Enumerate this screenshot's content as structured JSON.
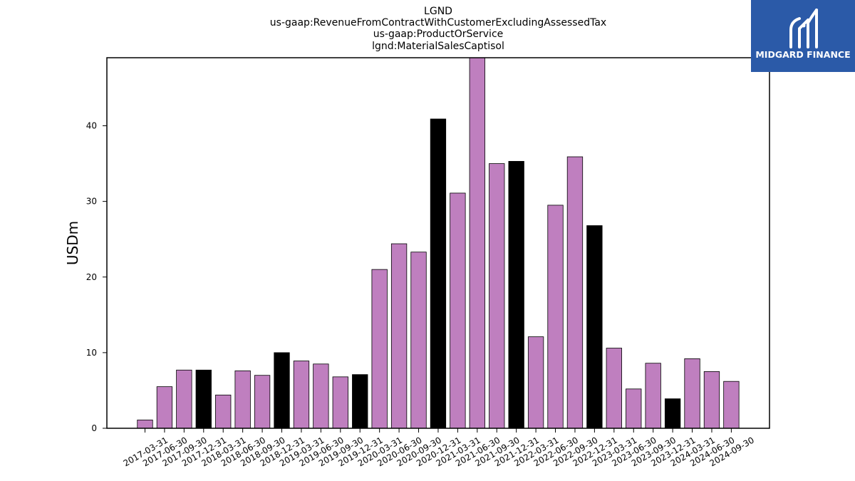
{
  "chart_data": {
    "type": "bar",
    "title_lines": [
      "LGND",
      "us-gaap:RevenueFromContractWithCustomerExcludingAssessedTax",
      "us-gaap:ProductOrService",
      "lgnd:MaterialSalesCaptisol"
    ],
    "ylabel": "USDm",
    "xlabel": "",
    "ylim": [
      0,
      49
    ],
    "yticks": [
      0,
      10,
      20,
      30,
      40
    ],
    "grid": false,
    "categories": [
      "2017-03-31",
      "2017-06-30",
      "2017-09-30",
      "2017-12-31",
      "2018-03-31",
      "2018-06-30",
      "2018-09-30",
      "2018-12-31",
      "2019-03-31",
      "2019-06-30",
      "2019-09-30",
      "2019-12-31",
      "2020-03-31",
      "2020-06-30",
      "2020-09-30",
      "2020-12-31",
      "2021-03-31",
      "2021-06-30",
      "2021-09-30",
      "2021-12-31",
      "2022-03-31",
      "2022-06-30",
      "2022-09-30",
      "2022-12-31",
      "2023-03-31",
      "2023-06-30",
      "2023-09-30",
      "2023-12-31",
      "2024-03-31",
      "2024-06-30",
      "2024-09-30"
    ],
    "values": [
      1.1,
      5.5,
      7.7,
      7.7,
      4.4,
      7.6,
      7.0,
      10.0,
      8.9,
      8.5,
      6.8,
      7.1,
      21.0,
      24.4,
      23.3,
      40.9,
      31.1,
      49.0,
      35.0,
      35.3,
      12.1,
      29.5,
      35.9,
      26.8,
      10.6,
      5.2,
      8.6,
      3.9,
      9.2,
      7.5,
      6.2
    ],
    "colors": {
      "quarter": "#bf7fbf",
      "year_end": "#000000"
    },
    "bar_color_keys": [
      "quarter",
      "quarter",
      "quarter",
      "year_end",
      "quarter",
      "quarter",
      "quarter",
      "year_end",
      "quarter",
      "quarter",
      "quarter",
      "year_end",
      "quarter",
      "quarter",
      "quarter",
      "year_end",
      "quarter",
      "quarter",
      "quarter",
      "year_end",
      "quarter",
      "quarter",
      "quarter",
      "year_end",
      "quarter",
      "quarter",
      "quarter",
      "year_end",
      "quarter",
      "quarter",
      "quarter"
    ]
  },
  "logo": {
    "text": "MIDGARD FINANCE",
    "background": "#2b5aa8"
  }
}
